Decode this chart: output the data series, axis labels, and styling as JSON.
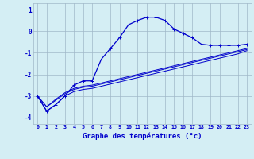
{
  "xlabel": "Graphe des températures (°c)",
  "bg_color": "#d4eef4",
  "grid_color": "#a0b8c8",
  "line_color": "#0000cc",
  "x_hours": [
    0,
    1,
    2,
    3,
    4,
    5,
    6,
    7,
    8,
    9,
    10,
    11,
    12,
    13,
    14,
    15,
    16,
    17,
    18,
    19,
    20,
    21,
    22,
    23
  ],
  "main_curve": [
    -3.0,
    -3.7,
    -3.4,
    -3.0,
    -2.5,
    -2.3,
    -2.3,
    -1.3,
    -0.8,
    -0.3,
    0.3,
    0.5,
    0.65,
    0.65,
    0.5,
    0.1,
    -0.1,
    -0.3,
    -0.6,
    -0.65,
    -0.65,
    -0.65,
    -0.65,
    -0.6
  ],
  "line2": [
    -3.0,
    -3.5,
    -3.2,
    -2.9,
    -2.7,
    -2.6,
    -2.55,
    -2.45,
    -2.35,
    -2.25,
    -2.15,
    -2.05,
    -1.95,
    -1.85,
    -1.75,
    -1.65,
    -1.55,
    -1.45,
    -1.35,
    -1.25,
    -1.15,
    -1.05,
    -0.95,
    -0.85
  ],
  "line3": [
    -3.0,
    -3.7,
    -3.4,
    -3.0,
    -2.8,
    -2.7,
    -2.65,
    -2.55,
    -2.45,
    -2.35,
    -2.25,
    -2.15,
    -2.05,
    -1.95,
    -1.85,
    -1.75,
    -1.65,
    -1.55,
    -1.45,
    -1.35,
    -1.25,
    -1.15,
    -1.05,
    -0.9
  ],
  "line4": [
    -3.0,
    -3.5,
    -3.15,
    -2.85,
    -2.65,
    -2.55,
    -2.5,
    -2.4,
    -2.3,
    -2.2,
    -2.1,
    -2.0,
    -1.9,
    -1.8,
    -1.7,
    -1.6,
    -1.5,
    -1.4,
    -1.3,
    -1.2,
    -1.1,
    -1.0,
    -0.9,
    -0.8
  ],
  "ylim": [
    -4.3,
    1.3
  ],
  "yticks": [
    -4,
    -3,
    -2,
    -1,
    0,
    1
  ],
  "xlim": [
    -0.5,
    23.5
  ]
}
